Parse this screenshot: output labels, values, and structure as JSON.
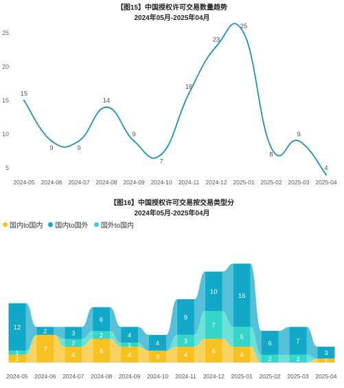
{
  "colors": {
    "line": "#1a93b5",
    "domestic_domestic": "#f7c221",
    "domestic_foreign": "#12a9c9",
    "foreign_domestic": "#34d6c8"
  },
  "chart_data": [
    {
      "type": "line",
      "title": "【图15】中国授权许可交易数量趋势",
      "subtitle": "2024年05月-2025年04月",
      "categories": [
        "2024-05",
        "2024-06",
        "2024-07",
        "2024-08",
        "2024-09",
        "2024-10",
        "2024-11",
        "2024-12",
        "2025-01",
        "2025-02",
        "2025-03",
        "2025-04"
      ],
      "values": [
        15,
        9,
        9,
        14,
        9,
        7,
        16,
        23,
        25,
        8,
        9,
        4
      ],
      "yticks": [
        5,
        10,
        15,
        20,
        25
      ],
      "ylim": [
        4.5,
        25.5
      ],
      "grid": false
    },
    {
      "type": "bar",
      "subtype": "ribbon-stacked",
      "title": "【图16】中国授权许可交易按交易类型分",
      "subtitle": "2024年05月-2025年04月",
      "categories": [
        "2024-05",
        "2024-06",
        "2024-07",
        "2024-08",
        "2024-09",
        "2024-10",
        "2024-11",
        "2024-12",
        "2025-01",
        "2025-02",
        "2025-03",
        "2025-04"
      ],
      "series": [
        {
          "name": "国内to国内",
          "values": [
            2,
            7,
            4,
            6,
            4,
            3,
            4,
            6,
            4,
            0,
            0,
            1
          ]
        },
        {
          "name": "国内to国外",
          "values": [
            12,
            2,
            3,
            6,
            4,
            4,
            9,
            10,
            16,
            6,
            7,
            3
          ]
        },
        {
          "name": "国外to国内",
          "values": [
            1,
            0,
            2,
            2,
            1,
            0,
            3,
            7,
            5,
            2,
            2,
            0
          ]
        }
      ],
      "legend": "top-left"
    }
  ]
}
